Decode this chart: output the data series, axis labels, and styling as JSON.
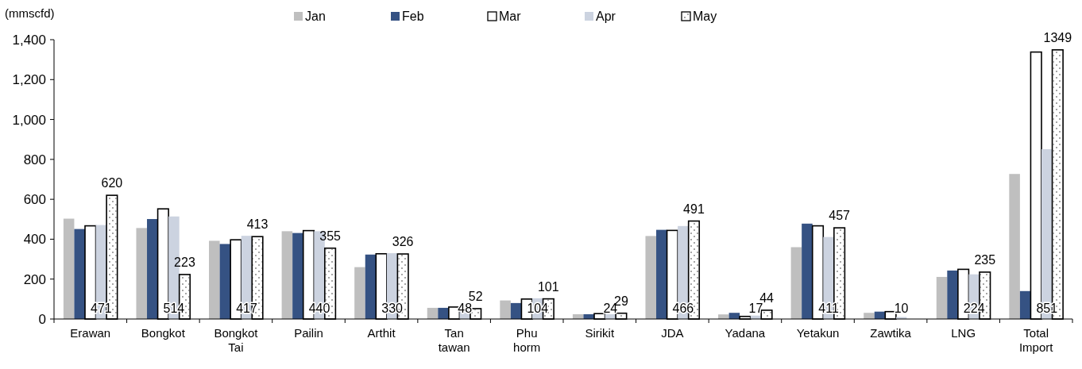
{
  "chart_data": {
    "type": "bar",
    "ylabel": "(mmscfd)",
    "categories": [
      "Erawan",
      "Bongkot",
      "Bongkot Tai",
      "Pailin",
      "Arthit",
      "Tan tawan",
      "Phu horm",
      "Sirikit",
      "JDA",
      "Yadana",
      "Yetakun",
      "Zawtika",
      "LNG",
      "Total Import"
    ],
    "series": [
      {
        "name": "Jan",
        "color": "#bfbfbf",
        "values": [
          503,
          456,
          392,
          440,
          260,
          56,
          93,
          24,
          416,
          23,
          360,
          31,
          211,
          727
        ]
      },
      {
        "name": "Feb",
        "color": "#355283",
        "values": [
          451,
          501,
          376,
          431,
          323,
          56,
          80,
          24,
          447,
          31,
          478,
          37,
          243,
          140
        ]
      },
      {
        "name": "Mar",
        "color": "#ffffff",
        "values": [
          467,
          552,
          397,
          443,
          327,
          60,
          100,
          27,
          444,
          13,
          467,
          37,
          249,
          1338
        ]
      },
      {
        "name": "Apr",
        "color": "#ccd3e0",
        "values": [
          471,
          514,
          417,
          440,
          330,
          48,
          104,
          24,
          466,
          17,
          411,
          10,
          224,
          851
        ],
        "value_labels": [
          "471",
          "514",
          "417",
          "440",
          "330",
          "48",
          "104",
          "24",
          "466",
          "17",
          "411",
          "10",
          "224",
          "851"
        ]
      },
      {
        "name": "May",
        "color": "#ffffff",
        "values": [
          620,
          223,
          413,
          355,
          326,
          52,
          101,
          29,
          491,
          44,
          457,
          null,
          235,
          1349
        ],
        "value_labels": [
          "620",
          "223",
          "413",
          "355",
          "326",
          "52",
          "101",
          "29",
          "491",
          "44",
          "457",
          null,
          "235",
          "1349"
        ]
      }
    ],
    "ylim": [
      0,
      1400
    ],
    "yticks": [
      0,
      200,
      400,
      600,
      800,
      {
        "value": 1000,
        "label": "1,000"
      },
      {
        "value": 1200,
        "label": "1,200"
      },
      {
        "value": 1400,
        "label": "1,400"
      }
    ],
    "legend": "top"
  }
}
